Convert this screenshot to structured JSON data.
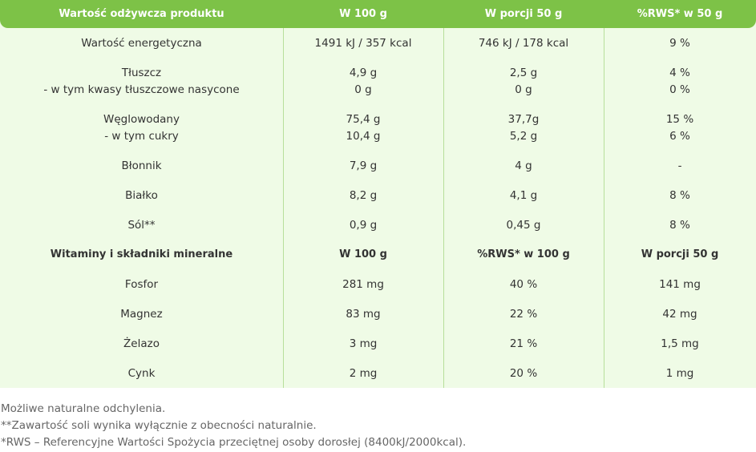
{
  "header": [
    "Wartość odżywcza produktu",
    "W 100 g",
    "W porcji 50 g",
    "%RWS* w 50 g"
  ],
  "rows": [
    {
      "label": "Wartość energetyczna",
      "v1": "1491 kJ / 357 kcal",
      "v2": "746 kJ / 178 kcal",
      "v3": "9 %"
    },
    {
      "label": "Tłuszcz",
      "v1": "4,9 g",
      "v2": "2,5 g",
      "v3": "4 %"
    },
    {
      "label": "- w tym kwasy tłuszczowe nasycone",
      "v1": "0 g",
      "v2": "0 g",
      "v3": "0 %"
    },
    {
      "label": "Węglowodany",
      "v1": "75,4 g",
      "v2": "37,7g",
      "v3": "15 %"
    },
    {
      "label": "- w tym cukry",
      "v1": "10,4 g",
      "v2": "5,2 g",
      "v3": "6 %"
    },
    {
      "label": "Błonnik",
      "v1": "7,9 g",
      "v2": "4 g",
      "v3": "-"
    },
    {
      "label": "Białko",
      "v1": "8,2 g",
      "v2": "4,1 g",
      "v3": "8 %"
    },
    {
      "label": "Sól**",
      "v1": "0,9 g",
      "v2": "0,45 g",
      "v3": "8 %"
    }
  ],
  "vitamins_header": [
    "Witaminy i składniki mineralne",
    "W 100 g",
    "%RWS* w 100 g",
    "W porcji 50 g"
  ],
  "vitamins": [
    {
      "label": "Fosfor",
      "v1": "281 mg",
      "v2": "40 %",
      "v3": "141 mg"
    },
    {
      "label": "Magnez",
      "v1": "83 mg",
      "v2": "22 %",
      "v3": "42 mg"
    },
    {
      "label": "Żelazo",
      "v1": "3 mg",
      "v2": "21 %",
      "v3": "1,5 mg"
    },
    {
      "label": "Cynk",
      "v1": "2 mg",
      "v2": "20 %",
      "v3": "1 mg"
    }
  ],
  "footnotes": [
    "Możliwe naturalne odchylenia.",
    "**Zawartość soli wynika wyłącznie z obecności naturalnie.",
    "*RWS – Referencyjne Wartości Spożycia przeciętnej osoby dorosłej (8400kJ/2000kcal)."
  ]
}
